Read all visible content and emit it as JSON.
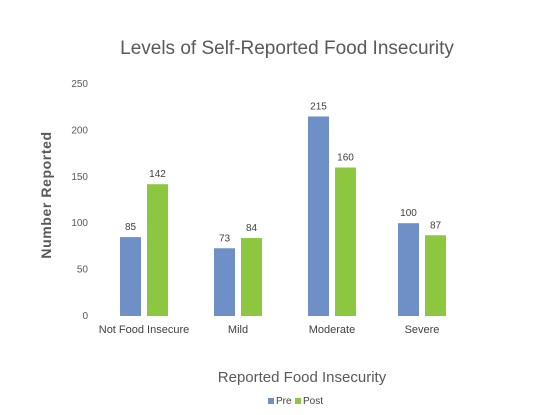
{
  "chart_data": {
    "type": "bar",
    "title": "Levels of Self-Reported Food Insecurity",
    "xlabel": "Reported Food Insecurity",
    "ylabel": "Number Reported",
    "categories": [
      "Not Food Insecure",
      "Mild",
      "Moderate",
      "Severe"
    ],
    "series": [
      {
        "name": "Pre",
        "values": [
          85,
          73,
          215,
          100
        ],
        "color": "#6f8fc7"
      },
      {
        "name": "Post",
        "values": [
          142,
          84,
          160,
          87
        ],
        "color": "#8dc63f"
      }
    ],
    "ylim": [
      0,
      250
    ],
    "yticks": [
      "0",
      "50",
      "100",
      "150",
      "200",
      "250"
    ],
    "ytick_values": [
      0,
      50,
      100,
      150,
      200,
      250
    ],
    "grid": false,
    "legend_position": "bottom",
    "data_labels": true
  }
}
